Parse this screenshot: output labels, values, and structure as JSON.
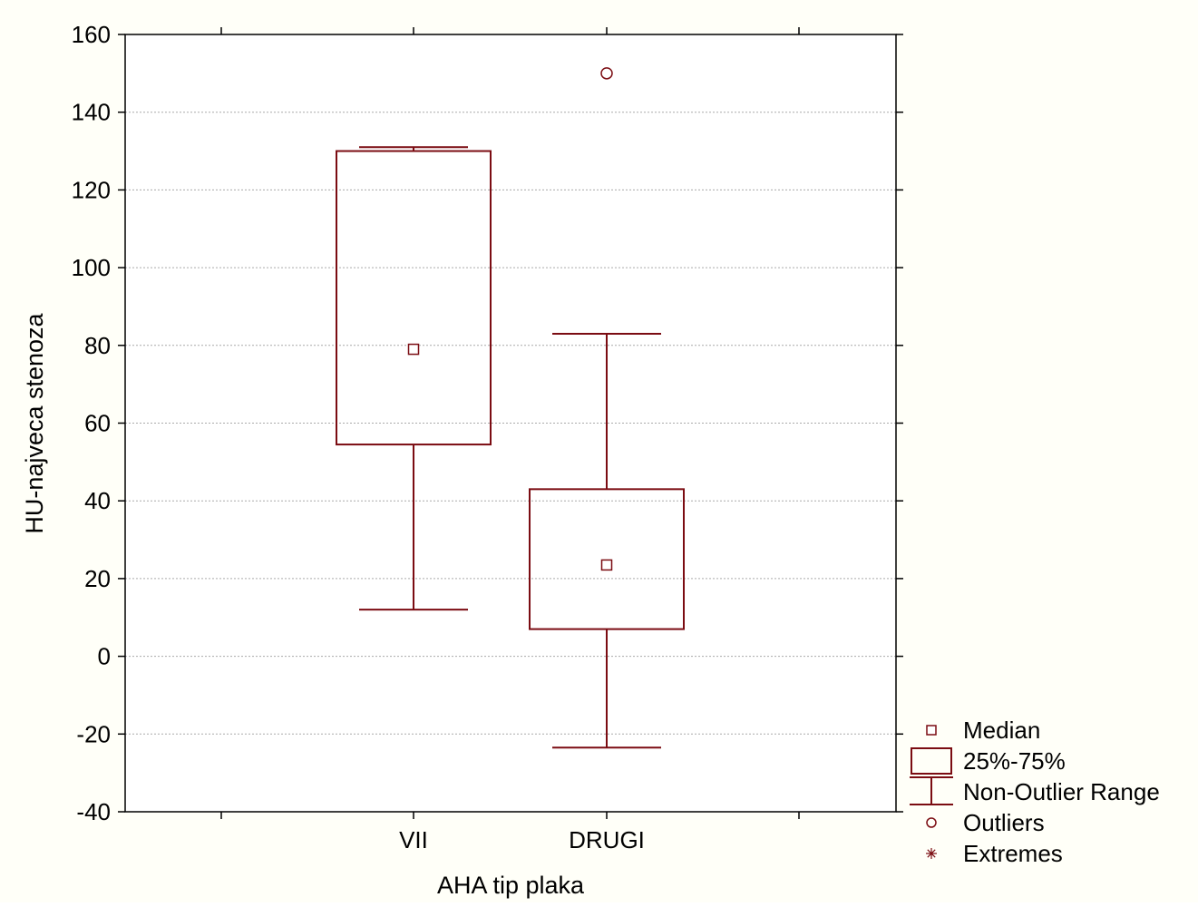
{
  "colors": {
    "background": "#fffff8",
    "plot_background": "#ffffff",
    "series": "#7b0c12",
    "grid": "#aaaaaa",
    "axis": "#000000"
  },
  "chart_data": {
    "type": "boxplot",
    "title": "",
    "xlabel": "AHA tip plaka",
    "ylabel": "HU-najveca stenoza",
    "ylim": [
      -40,
      160
    ],
    "yticks": [
      -40,
      -20,
      0,
      20,
      40,
      60,
      80,
      100,
      120,
      140,
      160
    ],
    "grid": true,
    "categories": [
      "VII",
      "DRUGI"
    ],
    "boxes": [
      {
        "category": "VII",
        "median": 79,
        "q1": 54.5,
        "q3": 130,
        "whisker_low": 12,
        "whisker_high": 131,
        "outliers": [],
        "extremes": []
      },
      {
        "category": "DRUGI",
        "median": 23.5,
        "q1": 7,
        "q3": 43,
        "whisker_low": -23.5,
        "whisker_high": 83,
        "outliers": [
          150
        ],
        "extremes": []
      }
    ],
    "legend": {
      "placement": "bottom-right, outside plot",
      "entries": [
        {
          "symbol": "median",
          "label": "Median"
        },
        {
          "symbol": "box",
          "label": "25%-75%"
        },
        {
          "symbol": "whisker",
          "label": "Non-Outlier Range"
        },
        {
          "symbol": "outlier",
          "label": "Outliers"
        },
        {
          "symbol": "extreme",
          "label": "Extremes"
        }
      ]
    }
  }
}
